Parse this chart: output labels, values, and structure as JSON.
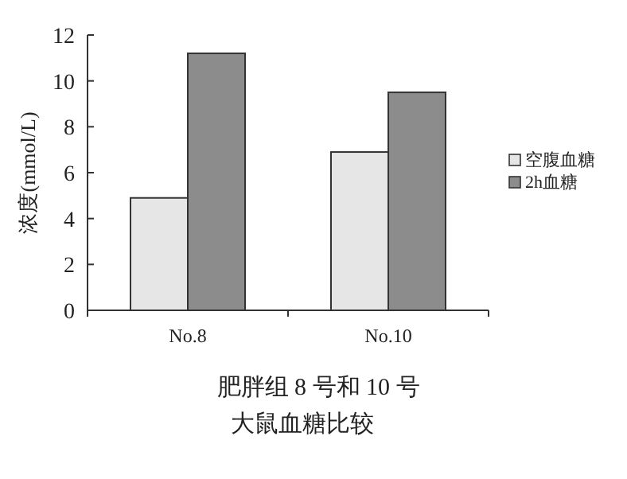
{
  "chart_data": {
    "type": "bar",
    "title": "肥胖组 8 号和 10 号",
    "subtitle": "大鼠血糖比较",
    "ylabel": "浓度(mmol/L)",
    "categories": [
      "No.8",
      "No.10"
    ],
    "series": [
      {
        "name": "空腹血糖",
        "color": "#e6e6e6",
        "values": [
          4.9,
          6.9
        ]
      },
      {
        "name": "2h血糖",
        "color": "#8c8c8c",
        "values": [
          11.2,
          9.5
        ]
      }
    ],
    "ylim": [
      0,
      12
    ],
    "yticks": [
      0,
      2,
      4,
      6,
      8,
      10,
      12
    ],
    "grid": false,
    "legend": "right"
  }
}
